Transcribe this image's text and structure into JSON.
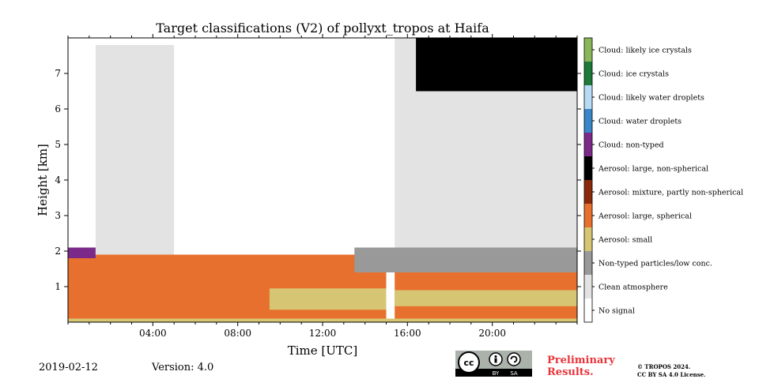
{
  "chart_data": {
    "type": "heatmap",
    "title": "Target classifications (V2) of pollyxt_tropos at Haifa",
    "xlabel": "Time [UTC]",
    "ylabel": "Height [km]",
    "xlim_hours": [
      0,
      24
    ],
    "ylim_km": [
      0,
      8
    ],
    "x_ticks": [
      {
        "value": 4,
        "label": "04:00"
      },
      {
        "value": 8,
        "label": "08:00"
      },
      {
        "value": 12,
        "label": "12:00"
      },
      {
        "value": 16,
        "label": "16:00"
      },
      {
        "value": 20,
        "label": "20:00"
      }
    ],
    "y_ticks": [
      {
        "value": 1,
        "label": "1"
      },
      {
        "value": 2,
        "label": "2"
      },
      {
        "value": 3,
        "label": "3"
      },
      {
        "value": 4,
        "label": "4"
      },
      {
        "value": 5,
        "label": "5"
      },
      {
        "value": 6,
        "label": "6"
      },
      {
        "value": 7,
        "label": "7"
      }
    ],
    "classes": [
      {
        "label": "Cloud: likely ice crystals",
        "color": "#8ab75a"
      },
      {
        "label": "Cloud: ice crystals",
        "color": "#1e7a3a"
      },
      {
        "label": "Cloud: likely water droplets",
        "color": "#b7dbf2"
      },
      {
        "label": "Cloud: water droplets",
        "color": "#3a86c8"
      },
      {
        "label": "Cloud: non-typed",
        "color": "#7b2a8a"
      },
      {
        "label": "Aerosol: large, non-spherical",
        "color": "#000000"
      },
      {
        "label": "Aerosol: mixture, partly non-spherical",
        "color": "#8a2a0a"
      },
      {
        "label": "Aerosol: large, spherical",
        "color": "#e8702e"
      },
      {
        "label": "Aerosol: small",
        "color": "#d6c673"
      },
      {
        "label": "Non-typed particles/low conc.",
        "color": "#999999"
      },
      {
        "label": "Clean atmosphere",
        "color": "#e3e3e3"
      },
      {
        "label": "No signal",
        "color": "#ffffff"
      }
    ],
    "regions": [
      {
        "class": "Aerosol: large, spherical",
        "x": [
          0,
          15.0
        ],
        "y": [
          0.05,
          1.9
        ]
      },
      {
        "class": "Aerosol: large, spherical",
        "x": [
          15.4,
          24
        ],
        "y": [
          0.05,
          1.4
        ]
      },
      {
        "class": "Aerosol: small",
        "x": [
          0,
          24
        ],
        "y": [
          0.0,
          0.1
        ]
      },
      {
        "class": "Aerosol: small",
        "x": [
          9.5,
          15.0
        ],
        "y": [
          0.35,
          0.95
        ]
      },
      {
        "class": "Aerosol: small",
        "x": [
          15.4,
          24
        ],
        "y": [
          0.45,
          0.9
        ]
      },
      {
        "class": "Non-typed particles/low conc.",
        "x": [
          13.5,
          24
        ],
        "y": [
          1.4,
          2.1
        ]
      },
      {
        "class": "Clean atmosphere",
        "x": [
          15.4,
          24
        ],
        "y": [
          2.1,
          8
        ]
      },
      {
        "class": "Clean atmosphere",
        "x": [
          1.3,
          5.0
        ],
        "y": [
          1.9,
          7.8
        ]
      },
      {
        "class": "Cloud: non-typed",
        "x": [
          0,
          1.3
        ],
        "y": [
          1.8,
          2.1
        ]
      },
      {
        "class": "Aerosol: large, non-spherical",
        "x": [
          16.4,
          24
        ],
        "y": [
          6.5,
          8
        ]
      }
    ]
  },
  "footer": {
    "date": "2019-02-12",
    "version": "Version: 4.0",
    "cc_text": "cc",
    "cc_by": "BY",
    "cc_sa": "SA",
    "preliminary": "Preliminary",
    "results": "Results.",
    "copyright_line1": "© TROPOS 2024.",
    "copyright_line2": "CC BY SA 4.0 License."
  }
}
